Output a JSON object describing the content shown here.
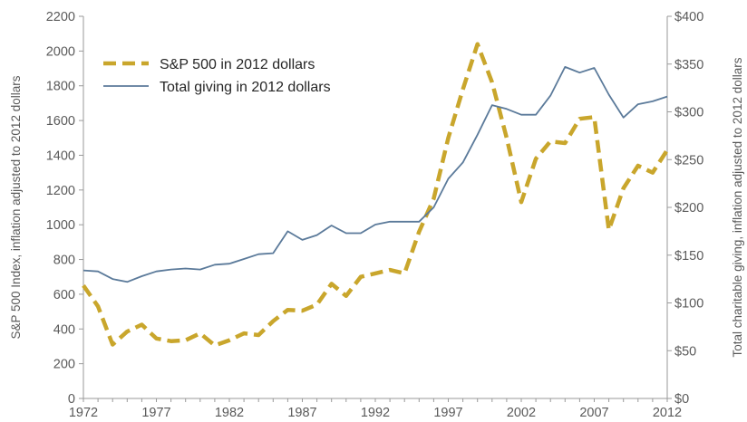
{
  "chart_data": {
    "type": "line",
    "xlabel": "",
    "ylabel": "S&P 500 Index, inflation adjusted to 2012 dollars",
    "y2label": "Total charitable giving, inflation adjusted to 2012 dollars",
    "xlim": [
      1972,
      2012
    ],
    "ylim": [
      0,
      2200
    ],
    "y2lim": [
      0,
      400
    ],
    "x_ticks": [
      1972,
      1977,
      1982,
      1987,
      1992,
      1997,
      2002,
      2007,
      2012
    ],
    "y_ticks": [
      0,
      200,
      400,
      600,
      800,
      1000,
      1200,
      1400,
      1600,
      1800,
      2000,
      2200
    ],
    "y2_ticks": [
      "$0",
      "$50",
      "$100",
      "$150",
      "$200",
      "$250",
      "$300",
      "$350",
      "$400"
    ],
    "y2_tick_values": [
      0,
      50,
      100,
      150,
      200,
      250,
      300,
      350,
      400
    ],
    "grid": false,
    "legend_position": "top-left",
    "x": [
      1972,
      1973,
      1974,
      1975,
      1976,
      1977,
      1978,
      1979,
      1980,
      1981,
      1982,
      1983,
      1984,
      1985,
      1986,
      1987,
      1988,
      1989,
      1990,
      1991,
      1992,
      1993,
      1994,
      1995,
      1996,
      1997,
      1998,
      1999,
      2000,
      2001,
      2002,
      2003,
      2004,
      2005,
      2006,
      2007,
      2008,
      2009,
      2010,
      2011,
      2012
    ],
    "series": [
      {
        "name": "S&P 500 in 2012 dollars",
        "axis": "left",
        "color": "#c9a62c",
        "style": "dashed",
        "values": [
          650,
          530,
          310,
          385,
          425,
          345,
          330,
          335,
          375,
          305,
          335,
          375,
          365,
          445,
          510,
          505,
          540,
          660,
          590,
          700,
          720,
          740,
          720,
          960,
          1150,
          1500,
          1780,
          2040,
          1820,
          1500,
          1130,
          1380,
          1480,
          1470,
          1610,
          1620,
          970,
          1210,
          1340,
          1300,
          1430
        ]
      },
      {
        "name": "Total giving in 2012 dollars",
        "axis": "right",
        "color": "#5b7a9a",
        "style": "solid",
        "values": [
          134,
          133,
          125,
          122,
          128,
          133,
          135,
          136,
          135,
          140,
          141,
          146,
          151,
          152,
          175,
          166,
          171,
          181,
          173,
          173,
          182,
          185,
          185,
          185,
          200,
          230,
          247,
          276,
          307,
          303,
          297,
          297,
          317,
          347,
          341,
          346,
          318,
          294,
          308,
          311,
          316
        ]
      }
    ]
  }
}
